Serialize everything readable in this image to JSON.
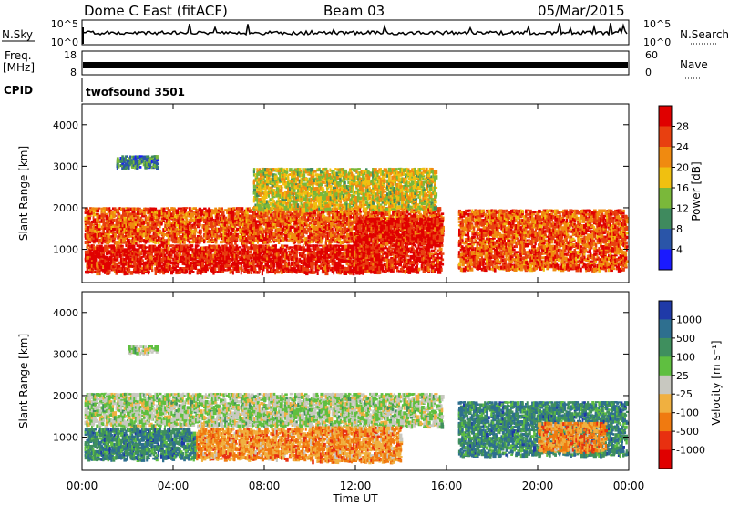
{
  "header": {
    "station": "Dome C East (fitACF)",
    "beam": "Beam 03",
    "date": "05/Mar/2015"
  },
  "strips": {
    "nsky_label": "N.Sky",
    "nsky_ticks": [
      "10^5",
      "10^0"
    ],
    "nsearch_label": "N.Search",
    "nsearch_ticks": [
      "10^5",
      "10^0"
    ],
    "freq_label": "Freq.",
    "freq_unit": "[MHz]",
    "freq_ticks": [
      "18",
      "8"
    ],
    "nave_label": "Nave",
    "nave_ticks": [
      "60",
      "0"
    ],
    "cpid_label": "CPID",
    "cpid_value": "twofsound 3501"
  },
  "chart_data": [
    {
      "type": "heatmap",
      "panel": "power",
      "ylabel": "Slant Range [km]",
      "yticks": [
        "1000",
        "2000",
        "3000",
        "4000"
      ],
      "ylim": [
        200,
        4500
      ],
      "xlim": [
        0,
        24
      ],
      "colorbar_label": "Power [dB]",
      "colorbar_ticks": [
        "4",
        "8",
        "12",
        "16",
        "20",
        "24",
        "28"
      ],
      "colorbar_colors": [
        "#1a1aff",
        "#2a55a8",
        "#3f8a5e",
        "#7ab83a",
        "#f0c010",
        "#f08a10",
        "#e84010",
        "#e00000"
      ],
      "bands": [
        {
          "t0": 0.1,
          "t1": 15.8,
          "r0": 1200,
          "r1": 2050,
          "level": 24
        },
        {
          "t0": 0.1,
          "t1": 13.0,
          "r0": 480,
          "r1": 1150,
          "level": 28
        },
        {
          "t0": 12.0,
          "t1": 15.8,
          "r0": 500,
          "r1": 1800,
          "level": 28
        },
        {
          "t0": 16.5,
          "t1": 24.0,
          "r0": 550,
          "r1": 2000,
          "level": 24
        },
        {
          "t0": 1.5,
          "t1": 3.3,
          "r0": 3000,
          "r1": 3300,
          "level": 8
        },
        {
          "t0": 7.5,
          "t1": 15.5,
          "r0": 2000,
          "r1": 3000,
          "level": 16
        }
      ]
    },
    {
      "type": "heatmap",
      "panel": "velocity",
      "ylabel": "Slant Range [km]",
      "yticks": [
        "1000",
        "2000",
        "3000",
        "4000"
      ],
      "ylim": [
        200,
        4500
      ],
      "xlim": [
        0,
        24
      ],
      "xticks": [
        "00:00",
        "04:00",
        "08:00",
        "12:00",
        "16:00",
        "20:00",
        "00:00"
      ],
      "xlabel": "Time UT",
      "colorbar_label": "Velocity [m s⁻¹]",
      "colorbar_ticks": [
        "1000",
        "500",
        "100",
        "25",
        "-25",
        "-100",
        "-500",
        "-1000"
      ],
      "colorbar_colors": [
        "#1f3aa8",
        "#2e6f8f",
        "#3f8f5e",
        "#5fbf40",
        "#c8c8c0",
        "#f0b040",
        "#f07a10",
        "#e83010",
        "#e00000"
      ],
      "bands": [
        {
          "t0": 0.1,
          "t1": 15.8,
          "r0": 1300,
          "r1": 2100,
          "level": 0
        },
        {
          "t0": 0.1,
          "t1": 5.0,
          "r0": 500,
          "r1": 1250,
          "level": 300
        },
        {
          "t0": 5.0,
          "t1": 10.0,
          "r0": 500,
          "r1": 1250,
          "level": -120
        },
        {
          "t0": 10.0,
          "t1": 14.0,
          "r0": 450,
          "r1": 1300,
          "level": -400
        },
        {
          "t0": 16.5,
          "t1": 24.0,
          "r0": 600,
          "r1": 1900,
          "level": 300
        },
        {
          "t0": 20.0,
          "t1": 23.0,
          "r0": 700,
          "r1": 1400,
          "level": -300
        },
        {
          "t0": 2.0,
          "t1": 3.3,
          "r0": 3050,
          "r1": 3250,
          "level": 0
        }
      ]
    }
  ]
}
